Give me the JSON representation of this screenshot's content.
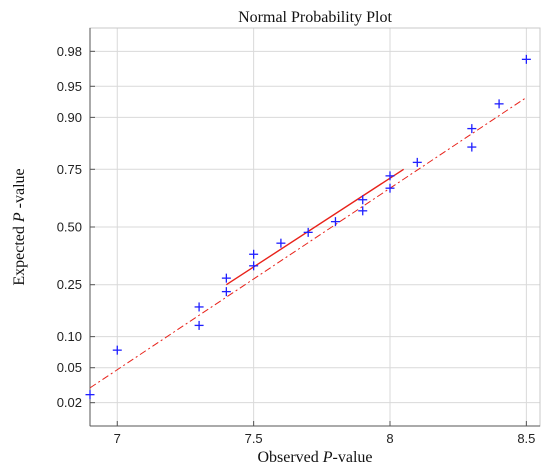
{
  "colors": {
    "points": "#1f1fff",
    "fit_line": "#e8221a",
    "grid": "#d9d9d9",
    "axis": "#555555"
  },
  "chart_data": {
    "type": "scatter",
    "title": "Normal Probability Plot",
    "xlabel_parts": [
      "Observed ",
      "P",
      "-value"
    ],
    "ylabel_parts": [
      "Expected ",
      "P",
      " -value"
    ],
    "xlim": [
      6.9,
      8.55
    ],
    "ylim": [
      0.01,
      0.99
    ],
    "y_scale": "normal-probability",
    "grid": true,
    "x_ticks": [
      {
        "value": 7,
        "label": "7"
      },
      {
        "value": 7.5,
        "label": "7.5"
      },
      {
        "value": 8,
        "label": "8"
      },
      {
        "value": 8.5,
        "label": "8.5"
      }
    ],
    "y_ticks": [
      {
        "value": 0.02,
        "label": "0.02"
      },
      {
        "value": 0.05,
        "label": "0.05"
      },
      {
        "value": 0.1,
        "label": "0.10"
      },
      {
        "value": 0.25,
        "label": "0.25"
      },
      {
        "value": 0.5,
        "label": "0.50"
      },
      {
        "value": 0.75,
        "label": "0.75"
      },
      {
        "value": 0.9,
        "label": "0.90"
      },
      {
        "value": 0.95,
        "label": "0.95"
      },
      {
        "value": 0.98,
        "label": "0.98"
      }
    ],
    "points": [
      {
        "x": 6.9,
        "y": 0.025
      },
      {
        "x": 7.0,
        "y": 0.075
      },
      {
        "x": 7.3,
        "y": 0.125
      },
      {
        "x": 7.3,
        "y": 0.175
      },
      {
        "x": 7.4,
        "y": 0.225
      },
      {
        "x": 7.4,
        "y": 0.275
      },
      {
        "x": 7.5,
        "y": 0.325
      },
      {
        "x": 7.5,
        "y": 0.375
      },
      {
        "x": 7.6,
        "y": 0.425
      },
      {
        "x": 7.7,
        "y": 0.475
      },
      {
        "x": 7.8,
        "y": 0.525
      },
      {
        "x": 7.9,
        "y": 0.575
      },
      {
        "x": 7.9,
        "y": 0.625
      },
      {
        "x": 8.0,
        "y": 0.675
      },
      {
        "x": 8.0,
        "y": 0.725
      },
      {
        "x": 8.1,
        "y": 0.775
      },
      {
        "x": 8.3,
        "y": 0.825
      },
      {
        "x": 8.3,
        "y": 0.875
      },
      {
        "x": 8.4,
        "y": 0.925
      },
      {
        "x": 8.5,
        "y": 0.975
      }
    ],
    "fit_line": {
      "solid": [
        {
          "x": 7.4,
          "y": 0.25
        },
        {
          "x": 8.05,
          "y": 0.75
        }
      ],
      "dashed": [
        {
          "x": 6.9,
          "y": 0.03
        },
        {
          "x": 8.5,
          "y": 0.935
        }
      ]
    }
  }
}
